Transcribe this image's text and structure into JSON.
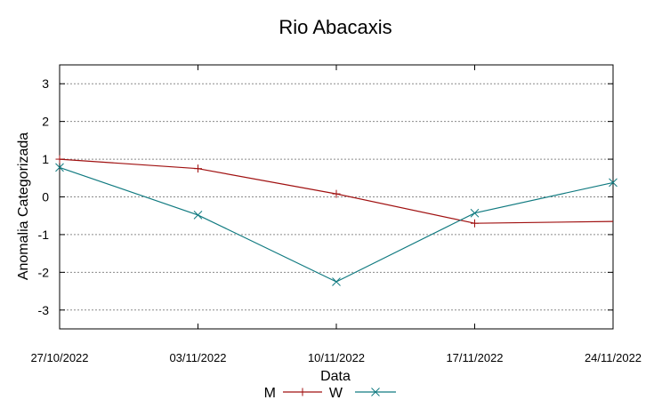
{
  "chart_data": {
    "type": "line",
    "title": "Rio Abacaxis",
    "xlabel": "Data",
    "ylabel": "Anomalia Categorizada",
    "categories": [
      "27/10/2022",
      "03/11/2022",
      "10/11/2022",
      "17/11/2022",
      "24/11/2022"
    ],
    "x_days": [
      0,
      7,
      14,
      21,
      28
    ],
    "ylim": [
      -3.5,
      3.5
    ],
    "yticks": [
      "3",
      "2",
      "1",
      "0",
      "-1",
      "-2",
      "-3"
    ],
    "ytick_values": [
      3,
      2,
      1,
      0,
      -1,
      -2,
      -3
    ],
    "grid": true,
    "legend_position": "bottom",
    "series": [
      {
        "name": "M",
        "color": "#a01010",
        "marker": "plus",
        "points": [
          {
            "day": 0,
            "y": 1.0
          },
          {
            "day": 7,
            "y": 0.75
          },
          {
            "day": 14,
            "y": 0.08
          },
          {
            "day": 21,
            "y": -0.7
          },
          {
            "day": 28,
            "y": -0.65
          }
        ],
        "marker_days": [
          0,
          7,
          14,
          21
        ]
      },
      {
        "name": "W",
        "color": "#107a80",
        "marker": "cross",
        "points": [
          {
            "day": 0,
            "y": 0.78
          },
          {
            "day": 7,
            "y": -0.48
          },
          {
            "day": 14,
            "y": -2.25
          },
          {
            "day": 21,
            "y": -0.43
          },
          {
            "day": 28,
            "y": 0.38
          }
        ],
        "marker_days": [
          0,
          7,
          14,
          21,
          28
        ]
      }
    ]
  }
}
